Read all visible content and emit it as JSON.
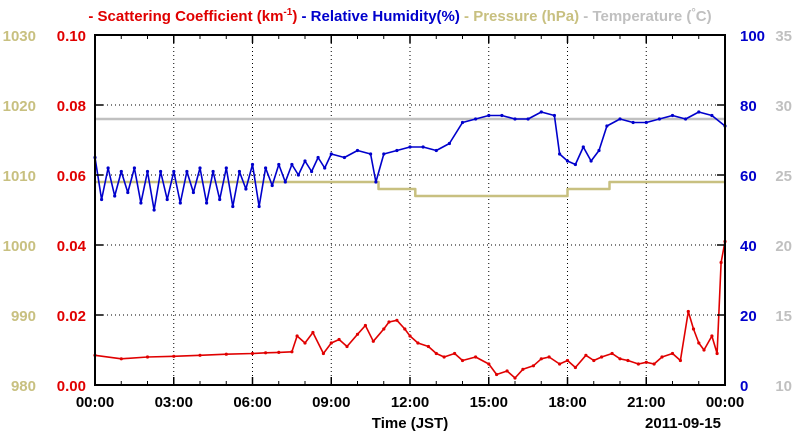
{
  "chart_data": {
    "type": "line",
    "xlabel": "Time (JST)",
    "date_label": "2011-09-15",
    "x_tick_labels": [
      "00:00",
      "03:00",
      "06:00",
      "09:00",
      "12:00",
      "15:00",
      "18:00",
      "21:00",
      "00:00"
    ],
    "x_range_hours": [
      0,
      24
    ],
    "grid": true,
    "legend_position": "top",
    "legend": [
      {
        "dash": "-",
        "text": "Scattering Coefficient (km",
        "sup": "-1",
        "close": ")",
        "color": "#e00000"
      },
      {
        "dash": "-",
        "text": "Relative Humidity(%)",
        "color": "#0000cc"
      },
      {
        "dash": "-",
        "text": "Pressure (hPa)",
        "color": "#c8c080"
      },
      {
        "dash": "-",
        "text": "Temperature (",
        "unit": "°",
        "close": "C)",
        "color": "#c0c0c0"
      }
    ],
    "axes": {
      "pressure": {
        "side": "left-outer",
        "range": [
          980,
          1030
        ],
        "ticks": [
          "980",
          "990",
          "1000",
          "1010",
          "1020",
          "1030"
        ],
        "color": "#c8c080"
      },
      "scattering": {
        "side": "left-inner",
        "range": [
          0,
          0.1
        ],
        "ticks": [
          "0.00",
          "0.02",
          "0.04",
          "0.06",
          "0.08",
          "0.10"
        ],
        "color": "#e00000"
      },
      "humidity": {
        "side": "right-inner",
        "range": [
          0,
          100
        ],
        "ticks": [
          "0",
          "20",
          "40",
          "60",
          "80",
          "100"
        ],
        "color": "#0000cc"
      },
      "temperature": {
        "side": "right-outer",
        "range": [
          10,
          35
        ],
        "ticks": [
          "10",
          "15",
          "20",
          "25",
          "30",
          "35"
        ],
        "color": "#c0c0c0"
      }
    },
    "series": [
      {
        "name": "Scattering Coefficient",
        "axis": "scattering",
        "color": "#e00000",
        "x": [
          0,
          1,
          2,
          3,
          4,
          5,
          6,
          6.5,
          7,
          7.5,
          7.7,
          8,
          8.3,
          8.7,
          9,
          9.3,
          9.6,
          10,
          10.3,
          10.6,
          11,
          11.2,
          11.5,
          11.8,
          12,
          12.3,
          12.7,
          13,
          13.3,
          13.7,
          14,
          14.5,
          15,
          15.3,
          15.7,
          16,
          16.3,
          16.7,
          17,
          17.3,
          17.7,
          18,
          18.3,
          18.7,
          19,
          19.3,
          19.7,
          20,
          20.3,
          20.7,
          21,
          21.3,
          21.6,
          22,
          22.3,
          22.6,
          22.8,
          23,
          23.2,
          23.5,
          23.7,
          23.85,
          24
        ],
        "y": [
          0.0085,
          0.0075,
          0.008,
          0.0082,
          0.0085,
          0.0088,
          0.009,
          0.0092,
          0.0093,
          0.0095,
          0.014,
          0.012,
          0.015,
          0.009,
          0.012,
          0.013,
          0.011,
          0.0145,
          0.017,
          0.0125,
          0.016,
          0.018,
          0.0185,
          0.016,
          0.014,
          0.012,
          0.011,
          0.009,
          0.008,
          0.009,
          0.007,
          0.008,
          0.006,
          0.003,
          0.004,
          0.002,
          0.0045,
          0.0055,
          0.0075,
          0.008,
          0.006,
          0.007,
          0.005,
          0.0085,
          0.007,
          0.008,
          0.009,
          0.0075,
          0.007,
          0.006,
          0.0065,
          0.006,
          0.008,
          0.009,
          0.007,
          0.021,
          0.016,
          0.012,
          0.01,
          0.014,
          0.009,
          0.035,
          0.041
        ]
      },
      {
        "name": "Relative Humidity",
        "axis": "humidity",
        "color": "#0000cc",
        "x": [
          0,
          0.25,
          0.5,
          0.75,
          1,
          1.25,
          1.5,
          1.75,
          2,
          2.25,
          2.5,
          2.75,
          3,
          3.25,
          3.5,
          3.75,
          4,
          4.25,
          4.5,
          4.75,
          5,
          5.25,
          5.5,
          5.75,
          6,
          6.25,
          6.5,
          6.75,
          7,
          7.25,
          7.5,
          7.75,
          8,
          8.25,
          8.5,
          8.75,
          9,
          9.5,
          10,
          10.5,
          10.7,
          11,
          11.5,
          12,
          12.5,
          13,
          13.5,
          14,
          14.5,
          15,
          15.5,
          16,
          16.5,
          17,
          17.5,
          17.7,
          18,
          18.3,
          18.6,
          18.9,
          19.2,
          19.5,
          20,
          20.5,
          21,
          21.5,
          22,
          22.5,
          23,
          23.5,
          24
        ],
        "y": [
          65,
          53,
          62,
          54,
          61,
          55,
          62,
          52,
          61,
          50,
          61,
          53,
          61,
          52,
          61,
          55,
          62,
          52,
          61,
          53,
          62,
          51,
          61,
          56,
          63,
          51,
          62,
          57,
          63,
          58,
          63,
          60,
          64,
          61,
          65,
          62,
          66,
          65,
          67,
          66,
          58,
          66,
          67,
          68,
          68,
          67,
          69,
          75,
          76,
          77,
          77,
          76,
          76,
          78,
          77,
          66,
          64,
          63,
          68,
          64,
          67,
          74,
          76,
          75,
          75,
          76,
          77,
          76,
          78,
          77,
          74
        ]
      },
      {
        "name": "Pressure",
        "axis": "pressure",
        "color": "#c8c080",
        "x": [
          0,
          7.5,
          7.5,
          10.8,
          10.8,
          12.2,
          12.2,
          18,
          18,
          19.6,
          19.6,
          24
        ],
        "y": [
          1009,
          1009,
          1009,
          1009,
          1008,
          1008,
          1007,
          1007,
          1008,
          1008,
          1009,
          1009
        ]
      },
      {
        "name": "Temperature",
        "axis": "temperature",
        "color": "#c0c0c0",
        "x": [
          0,
          24
        ],
        "y": [
          29,
          29
        ]
      }
    ]
  }
}
